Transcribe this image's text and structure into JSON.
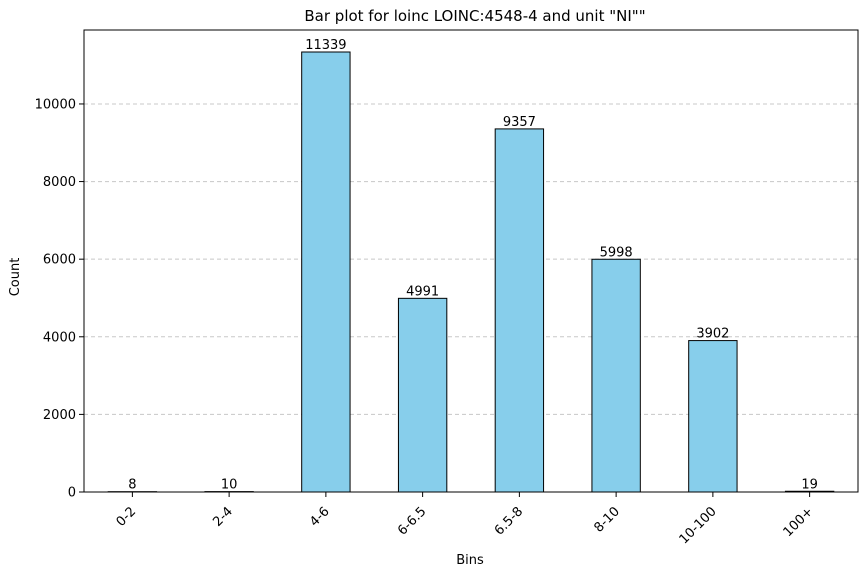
{
  "chart_data": {
    "type": "bar",
    "title": "Bar plot for loinc LOINC:4548-4 and unit \"NI\"\"",
    "xlabel": "Bins",
    "ylabel": "Count",
    "categories": [
      "0-2",
      "2-4",
      "4-6",
      "6-6.5",
      "6.5-8",
      "8-10",
      "10-100",
      "100+"
    ],
    "values": [
      8,
      10,
      11339,
      4991,
      9357,
      5998,
      3902,
      19
    ],
    "data_labels": [
      "8",
      "10",
      "11339",
      "4991",
      "9357",
      "5998",
      "3902",
      "19"
    ],
    "ylim": [
      0,
      11906
    ],
    "yticks": [
      0,
      2000,
      4000,
      6000,
      8000,
      10000
    ],
    "ytick_labels": [
      "0",
      "2000",
      "4000",
      "6000",
      "8000",
      "10000"
    ],
    "grid": "y, dashed",
    "bar_color": "#87CEEB",
    "edge_color": "#000000",
    "grid_color": "#c8c8c8"
  }
}
